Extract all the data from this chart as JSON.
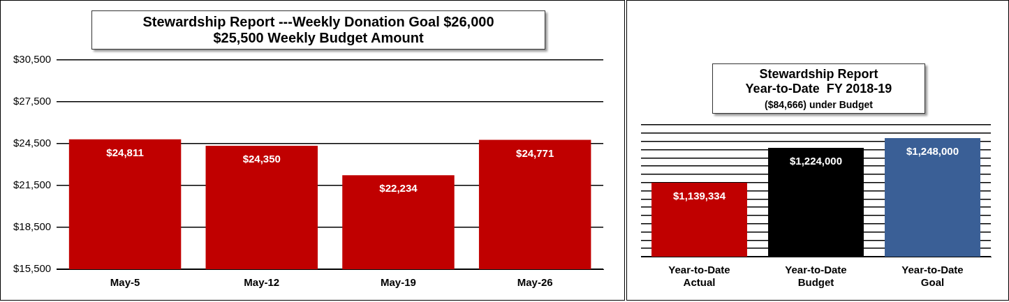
{
  "chart_data": [
    {
      "type": "bar",
      "title": "Stewardship Report ---Weekly Donation Goal $26,000",
      "subtitle": "$25,500 Weekly Budget Amount",
      "categories": [
        "May-5",
        "May-12",
        "May-19",
        "May-26"
      ],
      "values": [
        24811,
        24350,
        22234,
        24771
      ],
      "colors": [
        "#c00000",
        "#c00000",
        "#c00000",
        "#c00000"
      ],
      "value_labels": [
        "$24,811",
        "$24,350",
        "$22,234",
        "$24,771"
      ],
      "ylim": [
        15500,
        30500
      ],
      "yticks": [
        {
          "value": 15500,
          "label": "$15,500"
        },
        {
          "value": 18500,
          "label": "$18,500"
        },
        {
          "value": 21500,
          "label": "$21,500"
        },
        {
          "value": 24500,
          "label": "$24,500"
        },
        {
          "value": 27500,
          "label": "$27,500"
        },
        {
          "value": 30500,
          "label": "$30,500"
        }
      ],
      "grid": "y",
      "legend": false
    },
    {
      "type": "bar",
      "title": "Stewardship Report",
      "subtitle": "Year-to-Date  FY 2018-19",
      "annotations": [
        "($84,666) under Budget"
      ],
      "categories": [
        "Year-to-Date Actual",
        "Year-to-Date Budget",
        "Year-to-Date Goal"
      ],
      "values": [
        1139334,
        1224000,
        1248000
      ],
      "colors": [
        "#c00000",
        "#000000",
        "#3a5f96"
      ],
      "value_labels": [
        "$1,139,334",
        "$1,224,000",
        "$1,248,000"
      ],
      "ylim": [
        960000,
        1280000
      ],
      "yticks": [
        {
          "value": 960000,
          "label": null
        },
        {
          "value": 980000,
          "label": null
        },
        {
          "value": 1000000,
          "label": null
        },
        {
          "value": 1020000,
          "label": null
        },
        {
          "value": 1040000,
          "label": null
        },
        {
          "value": 1060000,
          "label": null
        },
        {
          "value": 1080000,
          "label": null
        },
        {
          "value": 1100000,
          "label": null
        },
        {
          "value": 1120000,
          "label": null
        },
        {
          "value": 1140000,
          "label": null
        },
        {
          "value": 1160000,
          "label": null
        },
        {
          "value": 1180000,
          "label": null
        },
        {
          "value": 1200000,
          "label": null
        },
        {
          "value": 1220000,
          "label": null
        },
        {
          "value": 1240000,
          "label": null
        },
        {
          "value": 1260000,
          "label": null
        },
        {
          "value": 1280000,
          "label": null
        }
      ],
      "grid": "y",
      "tick_labels": "x",
      "legend": false
    }
  ]
}
